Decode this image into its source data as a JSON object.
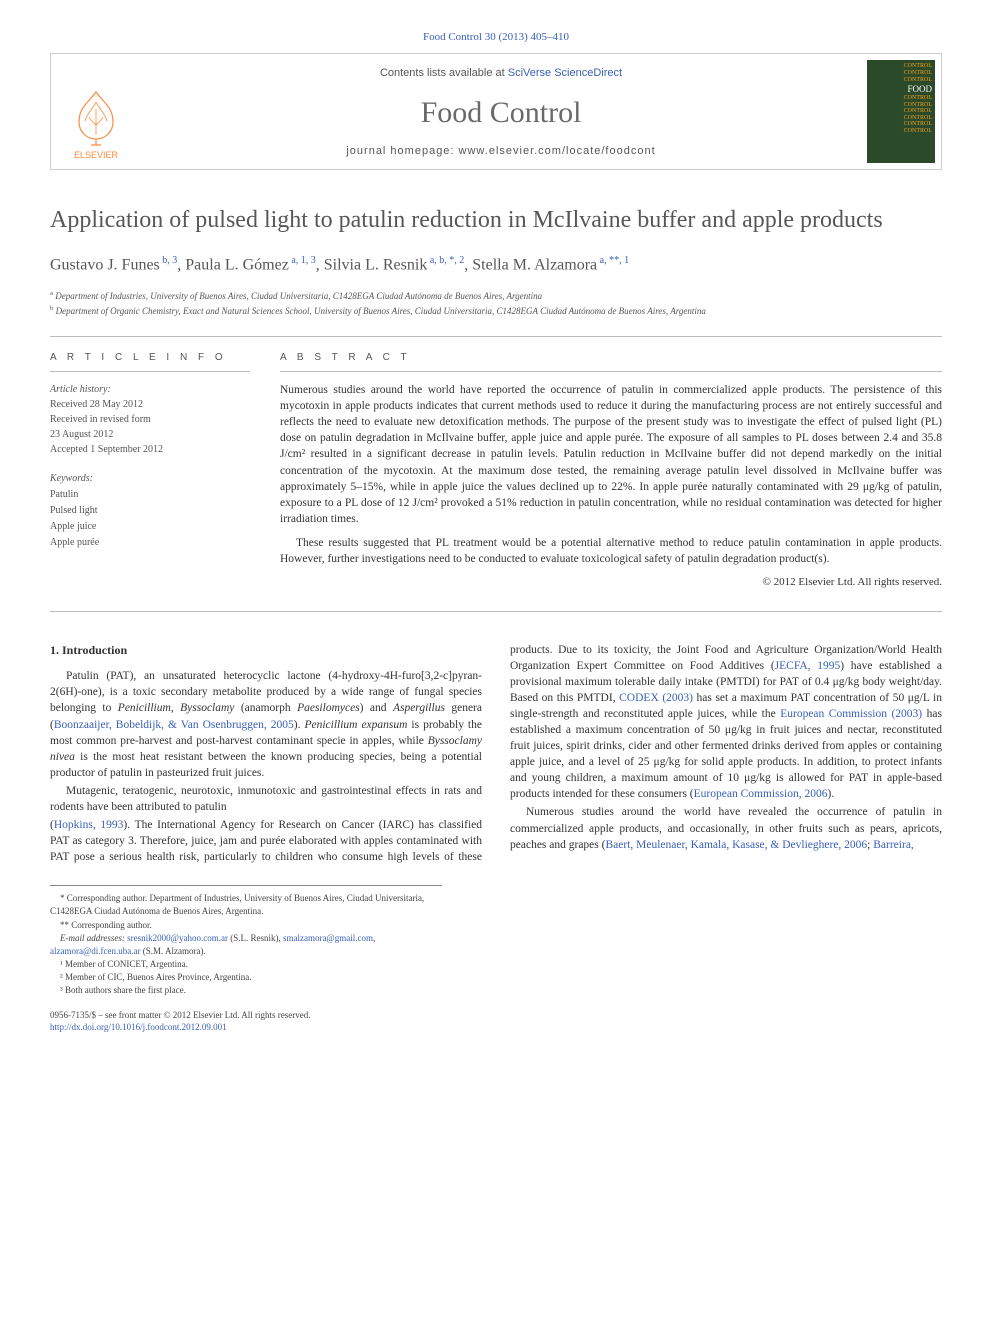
{
  "header": {
    "citation": "Food Control 30 (2013) 405–410",
    "contents_prefix": "Contents lists available at ",
    "contents_link": "SciVerse ScienceDirect",
    "journal_name": "Food Control",
    "homepage_label": "journal homepage: ",
    "homepage_url": "www.elsevier.com/locate/foodcont",
    "publisher_name": "ELSEVIER",
    "cover_lines": [
      "CONTROL",
      "CONTROL",
      "CONTROL"
    ],
    "cover_title": "FOOD",
    "cover_lines2": [
      "CONTROL",
      "CONTROL",
      "CONTROL",
      "CONTROL",
      "CONTROL",
      "CONTROL"
    ]
  },
  "colors": {
    "link": "#3a5fb7",
    "title_gray": "#575757",
    "publisher_orange": "#ff8a3d",
    "rule": "#bbbbbb",
    "cover_bg": "#2a4a2a",
    "cover_accent": "#f0a020"
  },
  "title": "Application of pulsed light to patulin reduction in McIlvaine buffer and apple products",
  "authors_html": "Gustavo J. Funes<sup> b, 3</sup>, Paula L. Gómez<sup> a, 1, 3</sup>, Silvia L. Resnik<sup> a, b, *, 2</sup>, Stella M. Alzamora<sup> a, **, 1</sup>",
  "affiliations": [
    {
      "sup": "a",
      "text": "Department of Industries, University of Buenos Aires, Ciudad Universitaria, C1428EGA Ciudad Autónoma de Buenos Aires, Argentina"
    },
    {
      "sup": "b",
      "text": "Department of Organic Chemistry, Exact and Natural Sciences School, University of Buenos Aires, Ciudad Universitaria, C1428EGA Ciudad Autónoma de Buenos Aires, Argentina"
    }
  ],
  "article_info": {
    "heading": "A R T I C L E   I N F O",
    "history_label": "Article history:",
    "history": [
      "Received 28 May 2012",
      "Received in revised form",
      "23 August 2012",
      "Accepted 1 September 2012"
    ],
    "keywords_label": "Keywords:",
    "keywords": [
      "Patulin",
      "Pulsed light",
      "Apple juice",
      "Apple purée"
    ]
  },
  "abstract": {
    "heading": "A B S T R A C T",
    "p1": "Numerous studies around the world have reported the occurrence of patulin in commercialized apple products. The persistence of this mycotoxin in apple products indicates that current methods used to reduce it during the manufacturing process are not entirely successful and reflects the need to evaluate new detoxification methods. The purpose of the present study was to investigate the effect of pulsed light (PL) dose on patulin degradation in McIlvaine buffer, apple juice and apple purée. The exposure of all samples to PL doses between 2.4 and 35.8 J/cm² resulted in a significant decrease in patulin levels. Patulin reduction in McIlvaine buffer did not depend markedly on the initial concentration of the mycotoxin. At the maximum dose tested, the remaining average patulin level dissolved in McIlvaine buffer was approximately 5–15%, while in apple juice the values declined up to 22%. In apple purée naturally contaminated with 29 μg/kg of patulin, exposure to a PL dose of 12 J/cm² provoked a 51% reduction in patulin concentration, while no residual contamination was detected for higher irradiation times.",
    "p2": "These results suggested that PL treatment would be a potential alternative method to reduce patulin contamination in apple products. However, further investigations need to be conducted to evaluate toxicological safety of patulin degradation product(s).",
    "copyright": "© 2012 Elsevier Ltd. All rights reserved."
  },
  "body": {
    "section_heading": "1. Introduction",
    "p1_html": "Patulin (PAT), an unsaturated heterocyclic lactone (4-hydroxy-4H-furo[3,2-c]pyran-2(6H)-one), is a toxic secondary metabolite produced by a wide range of fungal species belonging to <em>Penicillium</em>, <em>Byssoclamy</em> (anamorph <em>Paesilomyces</em>) and <em>Aspergillus</em> genera (<a href=\"#\">Boonzaaijer, Bobeldijk, &amp; Van Osenbruggen, 2005</a>). <em>Penicillium expansum</em> is probably the most common pre-harvest and post-harvest contaminant specie in apples, while <em>Byssoclamy nivea</em> is the most heat resistant between the known producing species, being a potential productor of patulin in pasteurized fruit juices.",
    "p2_html": "Mutagenic, teratogenic, neurotoxic, inmunotoxic and gastrointestinal effects in rats and rodents have been attributed to patulin",
    "p3_html": "(<a href=\"#\">Hopkins, 1993</a>). The International Agency for Research on Cancer (IARC) has classified PAT as category 3. Therefore, juice, jam and purée elaborated with apples contaminated with PAT pose a serious health risk, particularly to children who consume high levels of these products. Due to its toxicity, the Joint Food and Agriculture Organization/World Health Organization Expert Committee on Food Additives (<a href=\"#\">JECFA, 1995</a>) have established a provisional maximum tolerable daily intake (PMTDI) for PAT of 0.4 μg/kg body weight/day. Based on this PMTDI, <a href=\"#\">CODEX (2003)</a> has set a maximum PAT concentration of 50 μg/L in single-strength and reconstituted apple juices, while the <a href=\"#\">European Commission (2003)</a> has established a maximum concentration of 50 μg/kg in fruit juices and nectar, reconstituted fruit juices, spirit drinks, cider and other fermented drinks derived from apples or containing apple juice, and a level of 25 μg/kg for solid apple products. In addition, to protect infants and young children, a maximum amount of 10 μg/kg is allowed for PAT in apple-based products intended for these consumers (<a href=\"#\">European Commission, 2006</a>).",
    "p4_html": "Numerous studies around the world have revealed the occurrence of patulin in commercialized apple products, and occasionally, in other fruits such as pears, apricots, peaches and grapes (<a href=\"#\">Baert, Meulenaer, Kamala, Kasase, &amp; Devlieghere, 2006</a>; <a href=\"#\">Barreira,</a>"
  },
  "footnotes": {
    "corr1": "* Corresponding author. Department of Industries, University of Buenos Aires, Ciudad Universitaria, C1428EGA Ciudad Autónoma de Buenos Aires, Argentina.",
    "corr2": "** Corresponding author.",
    "email_label": "E-mail addresses:",
    "email1": "sresnik2000@yahoo.com.ar",
    "email1_who": " (S.L. Resnik), ",
    "email2": "smalzamora@gmail.com",
    "email2_sep": ", ",
    "email3": "alzamora@di.fcen.uba.ar",
    "email3_who": " (S.M. Alzamora).",
    "n1": "¹ Member of CONICET, Argentina.",
    "n2": "² Member of CIC, Buenos Aires Province, Argentina.",
    "n3": "³ Both authors share the first place."
  },
  "footer": {
    "line1": "0956-7135/$ – see front matter © 2012 Elsevier Ltd. All rights reserved.",
    "doi_url": "http://dx.doi.org/10.1016/j.foodcont.2012.09.001"
  }
}
